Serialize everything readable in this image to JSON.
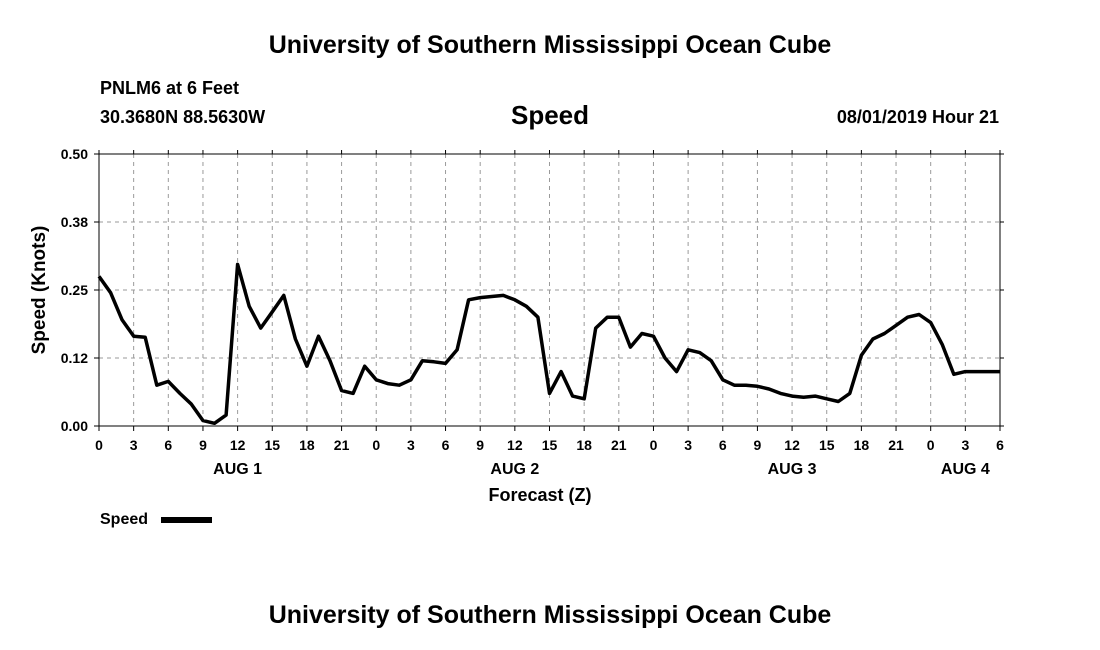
{
  "header": {
    "title": "University of Southern Mississippi Ocean Cube",
    "station": "PNLM6 at 6 Feet",
    "coordinates": "30.3680N 88.5630W",
    "timestamp": "08/01/2019 Hour 21"
  },
  "footer": {
    "title": "University of Southern Mississippi Ocean Cube"
  },
  "legend": {
    "label": "Speed"
  },
  "colors": {
    "line": "#000000",
    "grid": "#9a9a9a",
    "background": "#ffffff"
  },
  "chart_data": {
    "type": "line",
    "title": "Speed",
    "xlabel": "Forecast (Z)",
    "ylabel": "Speed (Knots)",
    "grid": true,
    "legend_position": "bottom-left",
    "x_unit": "hours since AUG 1 00Z",
    "xlim": [
      0,
      78
    ],
    "ylim": [
      0.0,
      0.5
    ],
    "y_ticks": [
      {
        "value": 0.0,
        "label": "0.00"
      },
      {
        "value": 0.125,
        "label": "0.12"
      },
      {
        "value": 0.25,
        "label": "0.25"
      },
      {
        "value": 0.375,
        "label": "0.38"
      },
      {
        "value": 0.5,
        "label": "0.50"
      }
    ],
    "x_ticks": [
      {
        "value": 0,
        "label": "0"
      },
      {
        "value": 3,
        "label": "3"
      },
      {
        "value": 6,
        "label": "6"
      },
      {
        "value": 9,
        "label": "9"
      },
      {
        "value": 12,
        "label": "12"
      },
      {
        "value": 15,
        "label": "15"
      },
      {
        "value": 18,
        "label": "18"
      },
      {
        "value": 21,
        "label": "21"
      },
      {
        "value": 24,
        "label": "0"
      },
      {
        "value": 27,
        "label": "3"
      },
      {
        "value": 30,
        "label": "6"
      },
      {
        "value": 33,
        "label": "9"
      },
      {
        "value": 36,
        "label": "12"
      },
      {
        "value": 39,
        "label": "15"
      },
      {
        "value": 42,
        "label": "18"
      },
      {
        "value": 45,
        "label": "21"
      },
      {
        "value": 48,
        "label": "0"
      },
      {
        "value": 51,
        "label": "3"
      },
      {
        "value": 54,
        "label": "6"
      },
      {
        "value": 57,
        "label": "9"
      },
      {
        "value": 60,
        "label": "12"
      },
      {
        "value": 63,
        "label": "15"
      },
      {
        "value": 66,
        "label": "18"
      },
      {
        "value": 69,
        "label": "21"
      },
      {
        "value": 72,
        "label": "0"
      },
      {
        "value": 75,
        "label": "3"
      },
      {
        "value": 78,
        "label": "6"
      }
    ],
    "day_labels": [
      {
        "value": 12,
        "label": "AUG 1"
      },
      {
        "value": 36,
        "label": "AUG 2"
      },
      {
        "value": 60,
        "label": "AUG 3"
      },
      {
        "value": 75,
        "label": "AUG 4"
      }
    ],
    "series": [
      {
        "name": "Speed",
        "x": [
          0,
          1,
          2,
          3,
          4,
          5,
          6,
          7,
          8,
          9,
          10,
          11,
          12,
          13,
          14,
          15,
          16,
          17,
          18,
          19,
          20,
          21,
          22,
          23,
          24,
          25,
          26,
          27,
          28,
          29,
          30,
          31,
          32,
          33,
          34,
          35,
          36,
          37,
          38,
          39,
          40,
          41,
          42,
          43,
          44,
          45,
          46,
          47,
          48,
          49,
          50,
          51,
          52,
          53,
          54,
          55,
          56,
          57,
          58,
          59,
          60,
          61,
          62,
          63,
          64,
          65,
          66,
          67,
          68,
          69,
          70,
          71,
          72,
          73,
          74,
          75,
          76,
          77,
          78
        ],
        "values": [
          0.275,
          0.245,
          0.195,
          0.165,
          0.163,
          0.075,
          0.082,
          0.06,
          0.04,
          0.01,
          0.005,
          0.02,
          0.297,
          0.22,
          0.18,
          0.21,
          0.24,
          0.16,
          0.11,
          0.165,
          0.12,
          0.065,
          0.06,
          0.11,
          0.085,
          0.078,
          0.075,
          0.085,
          0.12,
          0.118,
          0.115,
          0.14,
          0.232,
          0.236,
          0.238,
          0.24,
          0.232,
          0.22,
          0.2,
          0.06,
          0.1,
          0.055,
          0.05,
          0.18,
          0.2,
          0.2,
          0.145,
          0.17,
          0.165,
          0.125,
          0.1,
          0.14,
          0.135,
          0.12,
          0.085,
          0.075,
          0.075,
          0.073,
          0.068,
          0.06,
          0.055,
          0.053,
          0.055,
          0.05,
          0.045,
          0.06,
          0.13,
          0.16,
          0.17,
          0.185,
          0.2,
          0.205,
          0.19,
          0.15,
          0.095,
          0.1,
          0.1,
          0.1,
          0.1
        ]
      }
    ]
  }
}
